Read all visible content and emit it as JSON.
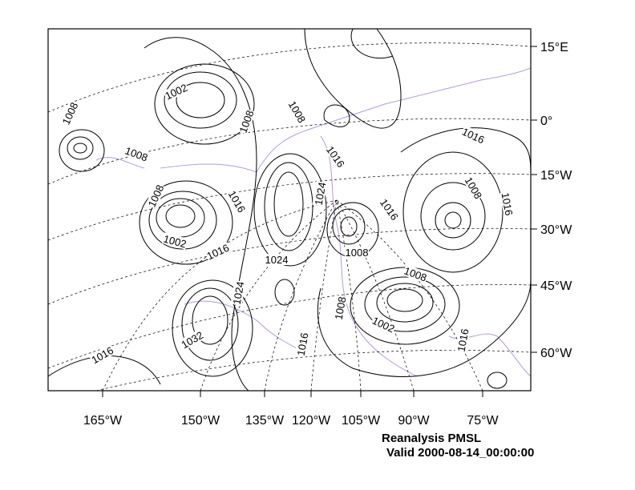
{
  "title": "Reanalysis PMSL",
  "valid": "Valid 2000-08-14_00:00:00",
  "longitude_labels": [
    "165°W",
    "150°W",
    "135°W",
    "120°W",
    "105°W",
    "90°W",
    "75°W"
  ],
  "latitude_labels": [
    "15°E",
    "0°",
    "15°W",
    "30°W",
    "45°W",
    "60°W"
  ],
  "contour_labels": [
    "1002",
    "1008",
    "1008",
    "1008",
    "1008",
    "1016",
    "1016",
    "1008",
    "1016",
    "1024",
    "1016",
    "1008",
    "1016",
    "1002",
    "1016",
    "1024",
    "1008",
    "1008",
    "1024",
    "1008",
    "1002",
    "1016",
    "1032",
    "1016",
    "1016"
  ],
  "colors": {
    "contour": "#000000",
    "coastline": "#b59bd6",
    "grid": "#000000"
  }
}
